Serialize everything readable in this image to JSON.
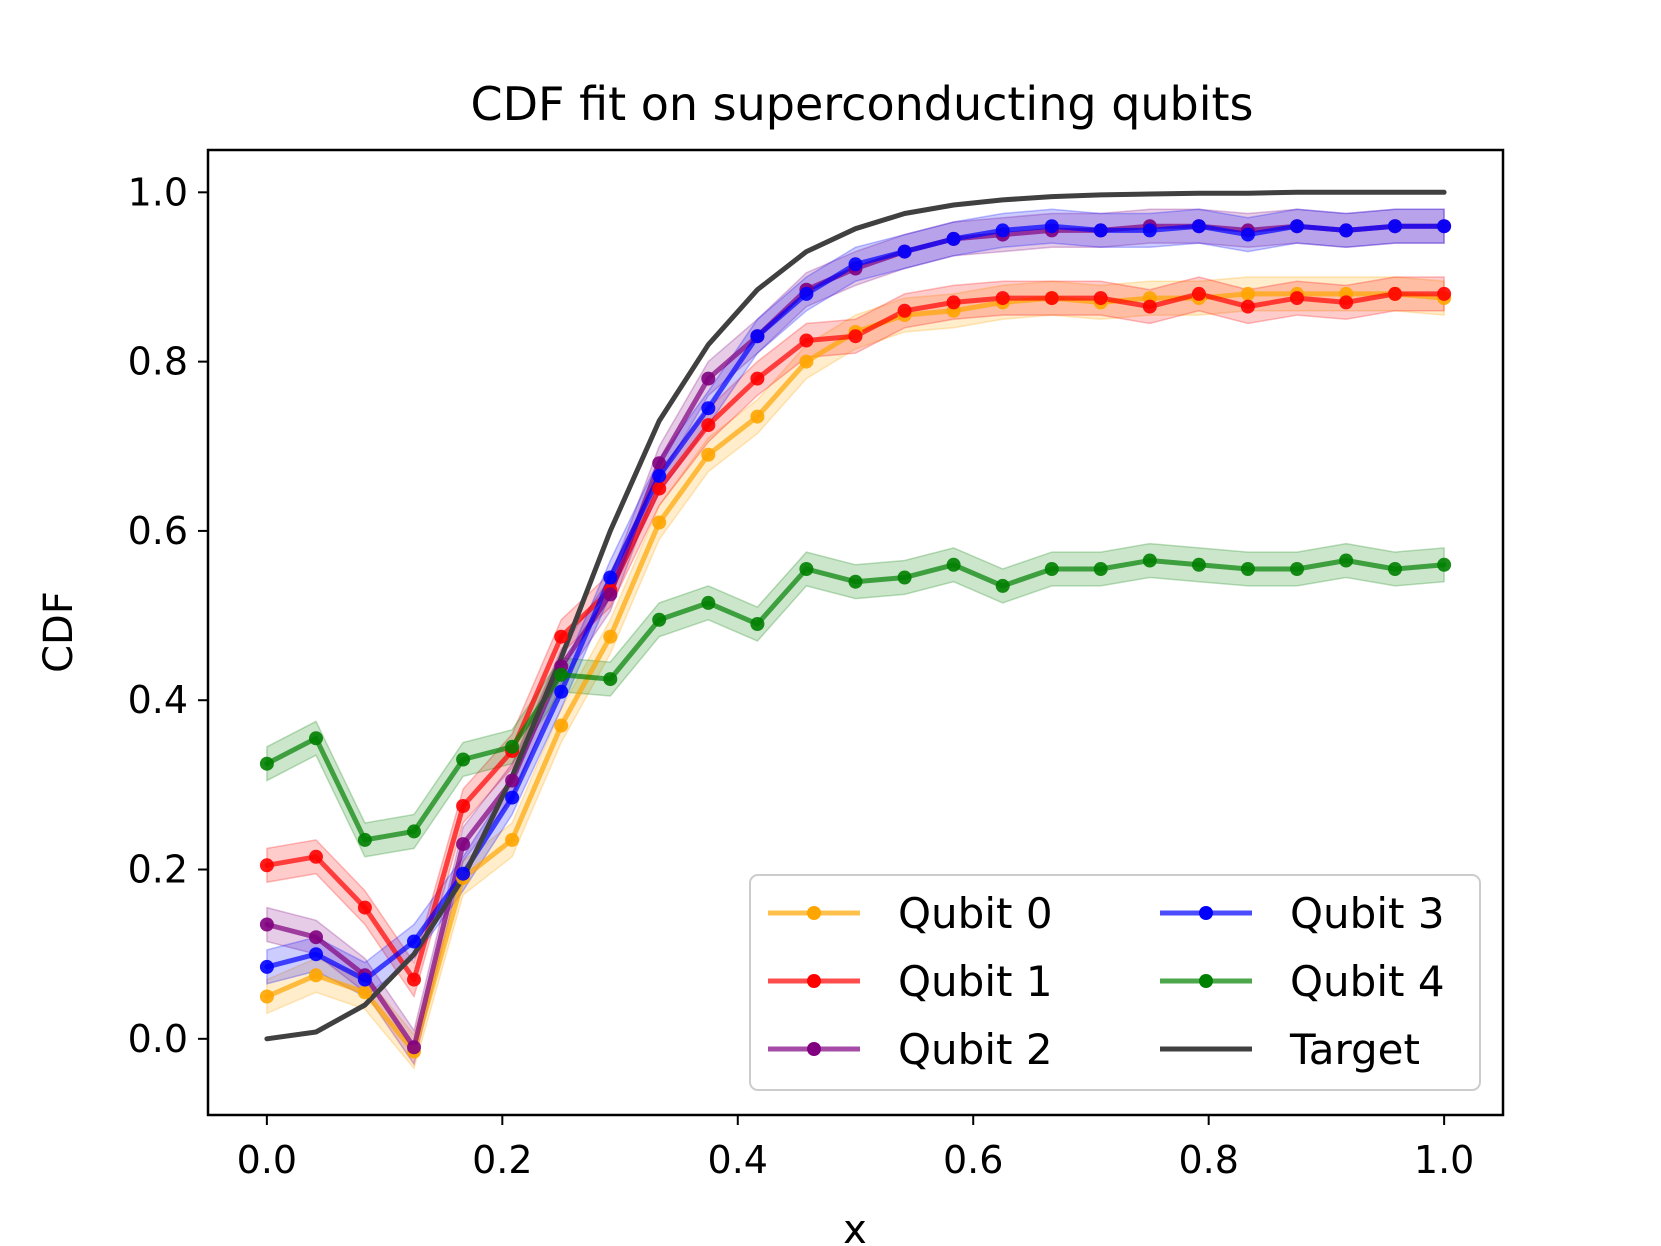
{
  "chart_data": {
    "type": "line",
    "title": "CDF fit on superconducting qubits",
    "xlabel": "x",
    "ylabel": "CDF",
    "xlim": [
      -0.05,
      1.05
    ],
    "ylim": [
      -0.09,
      1.05
    ],
    "xticks": [
      0.0,
      0.2,
      0.4,
      0.6,
      0.8,
      1.0
    ],
    "xtick_labels": [
      "0.0",
      "0.2",
      "0.4",
      "0.6",
      "0.8",
      "1.0"
    ],
    "yticks": [
      0.0,
      0.2,
      0.4,
      0.6,
      0.8,
      1.0
    ],
    "ytick_labels": [
      "0.0",
      "0.2",
      "0.4",
      "0.6",
      "0.8",
      "1.0"
    ],
    "grid": false,
    "legend_position": "bottom-right",
    "x": [
      0.0,
      0.0417,
      0.0833,
      0.125,
      0.1667,
      0.2083,
      0.25,
      0.2917,
      0.3333,
      0.375,
      0.4167,
      0.4583,
      0.5,
      0.5417,
      0.5833,
      0.625,
      0.6667,
      0.7083,
      0.75,
      0.7917,
      0.8333,
      0.875,
      0.9167,
      0.9583,
      1.0
    ],
    "series": [
      {
        "name": "Qubit 0",
        "color": "#ffa500",
        "band": 0.02,
        "values": [
          0.05,
          0.075,
          0.055,
          -0.015,
          0.19,
          0.235,
          0.37,
          0.475,
          0.61,
          0.69,
          0.735,
          0.8,
          0.835,
          0.855,
          0.86,
          0.87,
          0.875,
          0.87,
          0.875,
          0.875,
          0.88,
          0.88,
          0.88,
          0.88,
          0.875
        ]
      },
      {
        "name": "Qubit 1",
        "color": "#ff0000",
        "band": 0.02,
        "values": [
          0.205,
          0.215,
          0.155,
          0.07,
          0.275,
          0.34,
          0.475,
          0.53,
          0.65,
          0.725,
          0.78,
          0.825,
          0.83,
          0.86,
          0.87,
          0.875,
          0.875,
          0.875,
          0.865,
          0.88,
          0.865,
          0.875,
          0.87,
          0.88,
          0.88
        ]
      },
      {
        "name": "Qubit 2",
        "color": "#800080",
        "band": 0.02,
        "values": [
          0.135,
          0.12,
          0.075,
          -0.01,
          0.23,
          0.305,
          0.44,
          0.525,
          0.68,
          0.78,
          0.83,
          0.885,
          0.91,
          0.93,
          0.945,
          0.95,
          0.955,
          0.955,
          0.96,
          0.96,
          0.955,
          0.96,
          0.955,
          0.96,
          0.96
        ]
      },
      {
        "name": "Qubit 3",
        "color": "#0000ff",
        "band": 0.02,
        "values": [
          0.085,
          0.1,
          0.07,
          0.115,
          0.195,
          0.285,
          0.41,
          0.545,
          0.665,
          0.745,
          0.83,
          0.88,
          0.915,
          0.93,
          0.945,
          0.955,
          0.96,
          0.955,
          0.955,
          0.96,
          0.95,
          0.96,
          0.955,
          0.96,
          0.96
        ]
      },
      {
        "name": "Qubit 4",
        "color": "#008000",
        "band": 0.02,
        "values": [
          0.325,
          0.355,
          0.235,
          0.245,
          0.33,
          0.345,
          0.43,
          0.425,
          0.495,
          0.515,
          0.49,
          0.555,
          0.54,
          0.545,
          0.56,
          0.535,
          0.555,
          0.555,
          0.565,
          0.56,
          0.555,
          0.555,
          0.565,
          0.555,
          0.56
        ]
      },
      {
        "name": "Target",
        "color": "#404040",
        "band": 0,
        "values": [
          0.0,
          0.008,
          0.04,
          0.1,
          0.19,
          0.31,
          0.45,
          0.6,
          0.73,
          0.82,
          0.885,
          0.93,
          0.957,
          0.975,
          0.985,
          0.991,
          0.995,
          0.997,
          0.998,
          0.999,
          0.999,
          1.0,
          1.0,
          1.0,
          1.0
        ]
      }
    ]
  }
}
